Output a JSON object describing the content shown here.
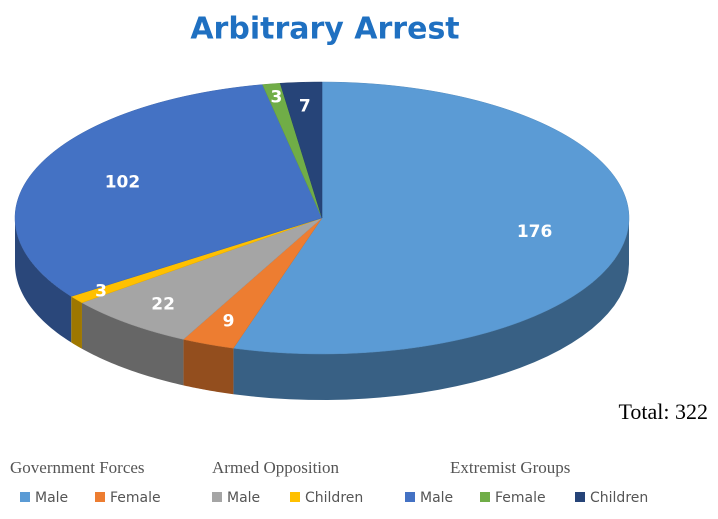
{
  "chart_data": {
    "type": "pie3d",
    "title": "Arbitrary Arrest",
    "series": [
      {
        "name": "Government Forces",
        "categories": [
          "Male",
          "Female"
        ],
        "values": [
          176,
          9
        ],
        "colors": [
          "#5b9bd5",
          "#ed7d31"
        ]
      },
      {
        "name": "Armed Opposition",
        "categories": [
          "Male",
          "Children"
        ],
        "values": [
          22,
          3
        ],
        "colors": [
          "#a5a5a5",
          "#ffc000"
        ]
      },
      {
        "name": "Extremist Groups",
        "categories": [
          "Male",
          "Female",
          "Children"
        ],
        "values": [
          102,
          3,
          7
        ],
        "colors": [
          "#4472c4",
          "#70ad47",
          "#264478"
        ]
      }
    ],
    "total_label": "Total: 322"
  }
}
